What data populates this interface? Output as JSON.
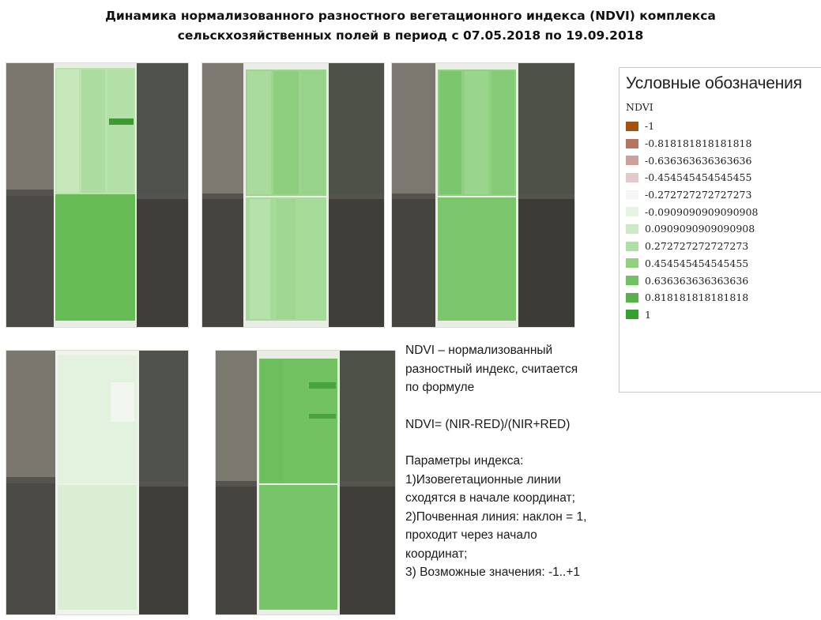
{
  "title": {
    "line1": "Динамика нормализованного разностного вегетационного индекса (NDVI) комплекса",
    "line2": "сельскхозяйственных полей в период с 07.05.2018 по 19.09.2018"
  },
  "legend": {
    "title": "Условные обозначения",
    "layer": "NDVI",
    "items": [
      {
        "label": "-1",
        "color": "#a5520f"
      },
      {
        "label": "-0.818181818181818",
        "color": "#b57565"
      },
      {
        "label": "-0.636363636363636",
        "color": "#cda19b"
      },
      {
        "label": "-0.454545454545455",
        "color": "#e4cacc"
      },
      {
        "label": "-0.272727272727273",
        "color": "#f7f5f5"
      },
      {
        "label": "-0.0909090909090908",
        "color": "#e6f4e2"
      },
      {
        "label": "0.0909090909090908",
        "color": "#cbeac3"
      },
      {
        "label": "0.272727272727273",
        "color": "#afdfa6"
      },
      {
        "label": "0.454545454545455",
        "color": "#8fd083"
      },
      {
        "label": "0.636363636363636",
        "color": "#72c262"
      },
      {
        "label": "0.818181818181818",
        "color": "#56b148"
      },
      {
        "label": "1",
        "color": "#36a02f"
      }
    ]
  },
  "notes": {
    "definition_1": "NDVI – нормализованный",
    "definition_2": "разностный индекс, считается",
    "definition_3": "по формуле",
    "formula": "NDVI=  (NIR-RED)/(NIR+RED)",
    "params_title": "Параметры индекса:",
    "param_1a": "1)Изовегетационные линии",
    "param_1b": "сходятся в начале координат;",
    "param_2a": "2)Почвенная линия: наклон = 1,",
    "param_2b": "проходит через начало",
    "param_2c": "координат;",
    "param_3": "3) Возможные значения: -1..+1"
  }
}
